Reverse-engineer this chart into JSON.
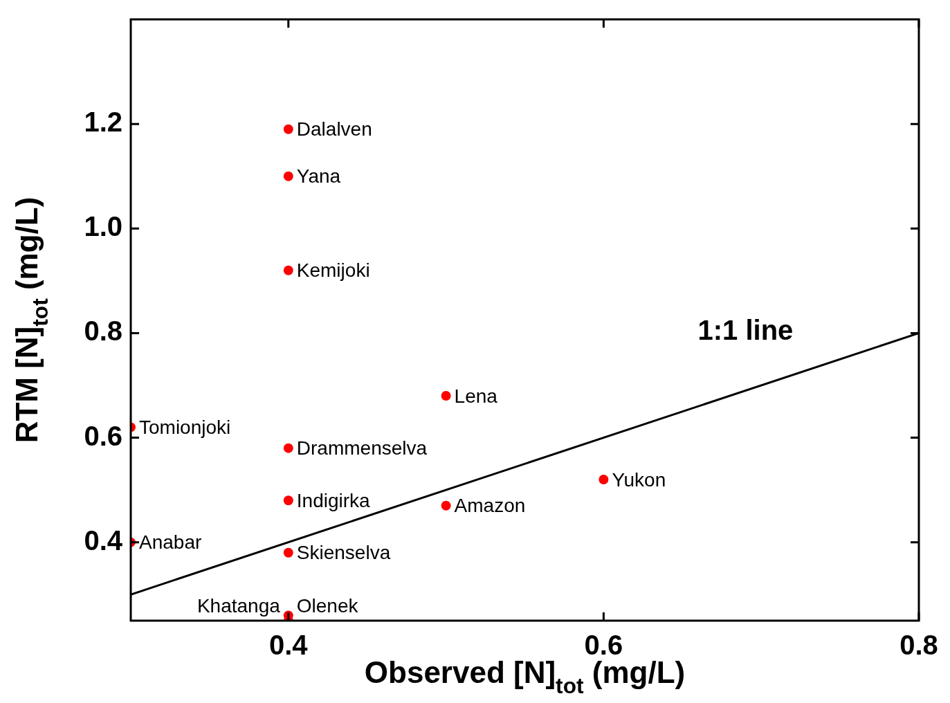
{
  "chart_data": {
    "type": "scatter",
    "xlabel": "Observed [N]$_{tot}$ (mg/L)",
    "ylabel": "RTM [N]$_{tot}$ (mg/L)",
    "xlim": [
      0.3,
      0.8
    ],
    "ylim": [
      0.25,
      1.4
    ],
    "xticks": [
      0.4,
      0.6,
      0.8
    ],
    "yticks": [
      0.4,
      0.6,
      0.8,
      {
        "value": 1.0,
        "label": "1.0"
      },
      1.2
    ],
    "grid": false,
    "legend": false,
    "marker": "circle",
    "series": [
      {
        "color": "#ff0000",
        "x": [
          0.4,
          0.4,
          0.4,
          0.5,
          0.3,
          0.4,
          0.6,
          0.4,
          0.5,
          0.3,
          0.4,
          0.4,
          0.4
        ],
        "values": [
          1.19,
          1.1,
          0.92,
          0.68,
          0.62,
          0.58,
          0.52,
          0.48,
          0.47,
          0.4,
          0.38,
          0.26,
          0.25
        ]
      },
      {
        "type": "line",
        "color": "#000000",
        "line_style": "solid",
        "marker": "none",
        "x": [
          0.3,
          0.8
        ],
        "values": [
          0.3,
          0.8
        ]
      }
    ],
    "annotations": [
      {
        "text": "Dalalven",
        "x": 0.4,
        "y": 1.19
      },
      {
        "text": "Yana",
        "x": 0.4,
        "y": 1.1
      },
      {
        "text": "Kemijoki",
        "x": 0.4,
        "y": 0.92
      },
      {
        "text": "Lena",
        "x": 0.5,
        "y": 0.68
      },
      {
        "text": "Tomionjoki",
        "x": 0.3,
        "y": 0.62
      },
      {
        "text": "Drammenselva",
        "x": 0.4,
        "y": 0.58
      },
      {
        "text": "Yukon",
        "x": 0.6,
        "y": 0.52
      },
      {
        "text": "Indigirka",
        "x": 0.4,
        "y": 0.48
      },
      {
        "text": "Amazon",
        "x": 0.5,
        "y": 0.47
      },
      {
        "text": "Anabar",
        "x": 0.3,
        "y": 0.4
      },
      {
        "text": "Skienselva",
        "x": 0.4,
        "y": 0.38
      },
      {
        "text": "Olenek",
        "x": 0.4,
        "y": 0.26
      },
      {
        "text": "Khatanga",
        "x": 0.4,
        "y": 0.25
      },
      "1:1 line"
    ]
  }
}
